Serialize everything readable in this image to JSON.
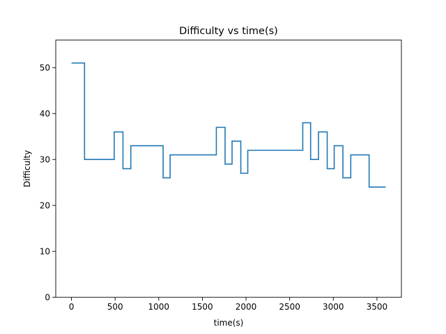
{
  "chart_data": {
    "type": "line",
    "drawstyle": "steps-post",
    "title": "Difficulty vs time(s)",
    "xlabel": "time(s)",
    "ylabel": "Difficulty",
    "xlim": [
      -180,
      3780
    ],
    "ylim": [
      0,
      56
    ],
    "xticks": [
      0,
      500,
      1000,
      1500,
      2000,
      2500,
      3000,
      3500
    ],
    "xtick_labels": [
      "0",
      "500",
      "1000",
      "1500",
      "2000",
      "2500",
      "3000",
      "3500"
    ],
    "yticks": [
      0,
      10,
      20,
      30,
      40,
      50
    ],
    "ytick_labels": [
      "0",
      "10",
      "20",
      "30",
      "40",
      "50"
    ],
    "grid": false,
    "legend": false,
    "color": "#1f77b4",
    "series": [
      {
        "x": [
          0,
          150,
          490,
          590,
          680,
          1050,
          1130,
          1660,
          1760,
          1840,
          1940,
          2020,
          2650,
          2740,
          2830,
          2930,
          3010,
          3110,
          3200,
          3410,
          3600
        ],
        "y": [
          51,
          30,
          36,
          28,
          33,
          26,
          31,
          37,
          29,
          34,
          27,
          32,
          38,
          30,
          36,
          28,
          33,
          26,
          31,
          24,
          24
        ]
      }
    ]
  }
}
